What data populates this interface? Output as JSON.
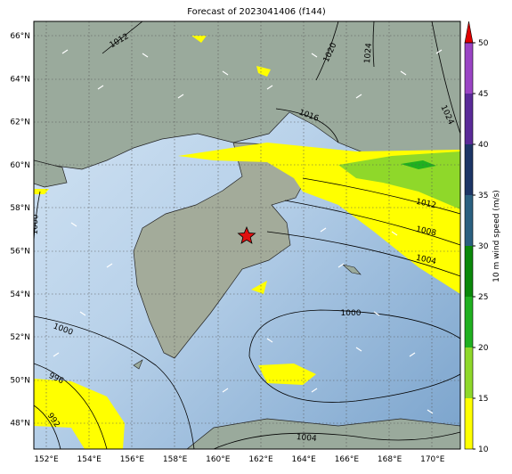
{
  "title": "Forecast of 2023041406 (f144)",
  "map": {
    "lat_labels": [
      "66°N",
      "64°N",
      "62°N",
      "60°N",
      "58°N",
      "56°N",
      "54°N",
      "52°N",
      "50°N",
      "48°N"
    ],
    "lon_labels": [
      "152°E",
      "154°E",
      "156°E",
      "158°E",
      "160°E",
      "162°E",
      "164°E",
      "166°E",
      "168°E",
      "170°E"
    ],
    "contour_labels": [
      "1012",
      "1020",
      "1024",
      "1024",
      "1016",
      "1000",
      "1012",
      "1008",
      "1004",
      "1000",
      "1000",
      "996",
      "992",
      "1004"
    ]
  },
  "colorbar": {
    "label": "10 m wind speed (m/s)",
    "range": [
      10,
      50
    ],
    "ticks": [
      10,
      15,
      20,
      25,
      30,
      35,
      40,
      45,
      50
    ],
    "colors": [
      "#ffff00",
      "#8fd82a",
      "#20b020",
      "#0a880a",
      "#2b6080",
      "#1d3566",
      "#5a2a98",
      "#9a44c4"
    ],
    "extend_color": "#e00000"
  }
}
